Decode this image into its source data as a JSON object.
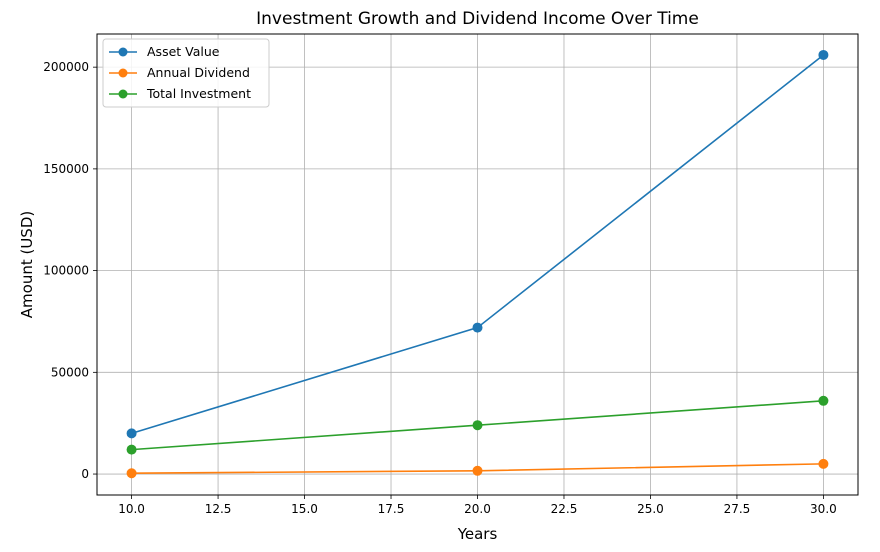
{
  "chart_data": {
    "type": "line",
    "title": "Investment Growth and Dividend Income Over Time",
    "xlabel": "Years",
    "ylabel": "Amount (USD)",
    "xlim": [
      9.0,
      31.0
    ],
    "ylim": [
      -10300,
      216300
    ],
    "xticks": [
      10.0,
      12.5,
      15.0,
      17.5,
      20.0,
      22.5,
      25.0,
      27.5,
      30.0
    ],
    "xtick_labels": [
      "10.0",
      "12.5",
      "15.0",
      "17.5",
      "20.0",
      "22.5",
      "25.0",
      "27.5",
      "30.0"
    ],
    "yticks": [
      0,
      50000,
      100000,
      150000,
      200000
    ],
    "ytick_labels": [
      "0",
      "50000",
      "100000",
      "150000",
      "200000"
    ],
    "grid": true,
    "legend_position": "upper-left",
    "x": [
      10,
      20,
      30
    ],
    "series": [
      {
        "name": "Asset Value",
        "color": "#1f77b4",
        "values": [
          20000,
          72000,
          206000
        ]
      },
      {
        "name": "Annual Dividend",
        "color": "#ff7f0e",
        "values": [
          400,
          1600,
          5000
        ]
      },
      {
        "name": "Total Investment",
        "color": "#2ca02c",
        "values": [
          12000,
          24000,
          36000
        ]
      }
    ]
  }
}
